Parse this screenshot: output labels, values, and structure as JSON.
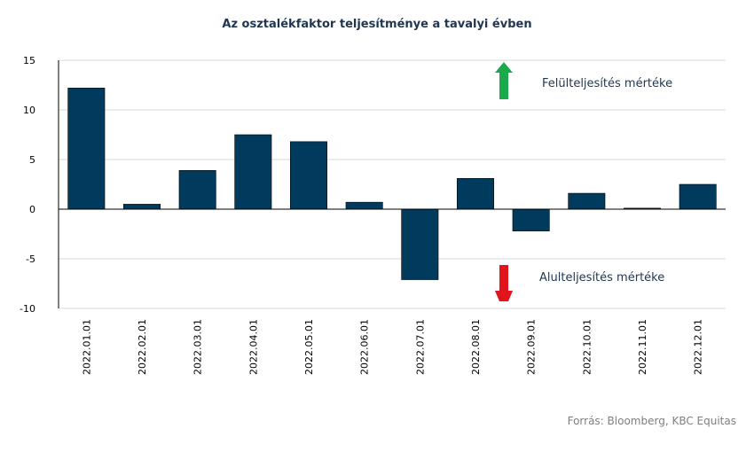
{
  "chart_data": {
    "type": "bar",
    "title": "Az osztalékfaktor teljesítménye  a tavalyi  évben",
    "categories": [
      "2022.01.01",
      "2022.02.01",
      "2022.03.01",
      "2022.04.01",
      "2022.05.01",
      "2022.06.01",
      "2022.07.01",
      "2022.08.01",
      "2022.09.01",
      "2022.10.01",
      "2022.11.01",
      "2022.12.01"
    ],
    "values": [
      12.2,
      0.5,
      3.9,
      7.5,
      6.8,
      0.7,
      -7.1,
      3.1,
      -2.2,
      1.6,
      0.1,
      2.5
    ],
    "ylim": [
      -10,
      15
    ],
    "yticks": [
      -10,
      -5,
      0,
      5,
      10,
      15
    ],
    "ytick_labels": [
      "-10",
      "-5",
      "0",
      "5",
      "10",
      "15"
    ],
    "grid": true,
    "bar_color": "#003a5d",
    "annotations": {
      "up": {
        "text": "Felülteljesítés  mértéke",
        "color": "#1aaa4b"
      },
      "down": {
        "text": "Alulteljesítés  mértéke",
        "color": "#e0141a"
      }
    }
  },
  "source": "Forrás: Bloomberg,  KBC Equitas"
}
